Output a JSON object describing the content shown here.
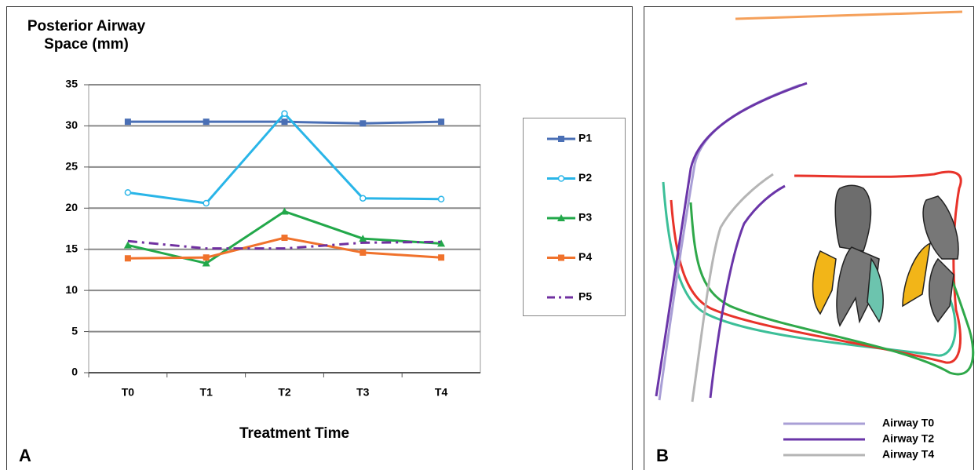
{
  "chart_data": {
    "type": "line",
    "title": "Posterior Airway Space (mm)",
    "x_label": "Treatment Time",
    "categories": [
      "T0",
      "T1",
      "T2",
      "T3",
      "T4"
    ],
    "series": [
      {
        "name": "P1",
        "color": "#4a6fb5",
        "marker": "square",
        "dash": false,
        "values": [
          30.5,
          30.5,
          30.5,
          30.3,
          30.5
        ]
      },
      {
        "name": "P2",
        "color": "#29b5e8",
        "marker": "circle",
        "dash": false,
        "values": [
          21.9,
          20.6,
          31.5,
          21.2,
          21.1
        ]
      },
      {
        "name": "P3",
        "color": "#22a84a",
        "marker": "triangle",
        "dash": false,
        "values": [
          15.5,
          13.3,
          19.6,
          16.3,
          15.7
        ]
      },
      {
        "name": "P4",
        "color": "#f0722c",
        "marker": "square",
        "dash": false,
        "values": [
          13.9,
          14.0,
          16.4,
          14.6,
          14.0
        ]
      },
      {
        "name": "P5",
        "color": "#7030a0",
        "marker": "none",
        "dash": true,
        "values": [
          16.0,
          15.1,
          15.1,
          15.8,
          15.9
        ]
      }
    ],
    "ylim": [
      0,
      35
    ],
    "yticks": [
      0,
      5,
      10,
      15,
      20,
      25,
      30,
      35
    ],
    "grid": true,
    "legend": "right"
  },
  "panel_b": {
    "legend": [
      {
        "label": "Airway T0",
        "color": "#a99fd6"
      },
      {
        "label": "Airway T2",
        "color": "#6a35a8"
      },
      {
        "label": "Airway T4",
        "color": "#b5b5b5"
      }
    ]
  },
  "panel_labels": [
    "A",
    "B"
  ]
}
